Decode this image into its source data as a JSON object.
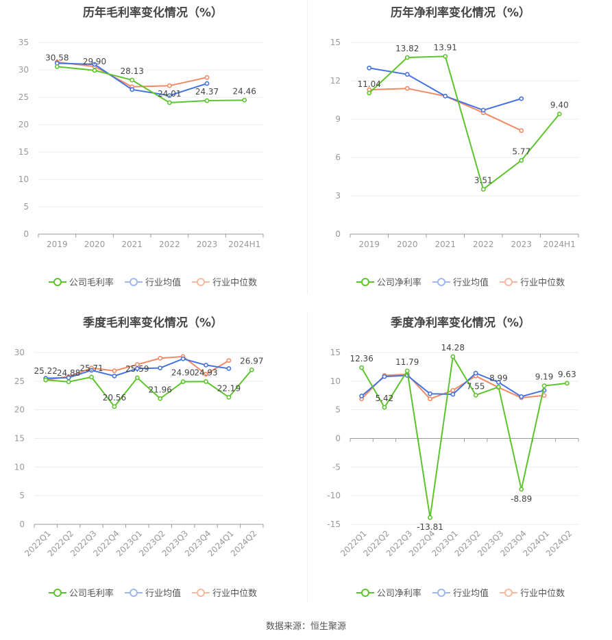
{
  "source_note": "数据来源：恒生聚源",
  "colors": {
    "company": "#5cc42b",
    "industry_avg": "#4472e0",
    "industry_median": "#f08a62"
  },
  "chart_data": [
    {
      "id": "annual-gross",
      "type": "line",
      "title": "历年毛利率变化情况（%）",
      "categories": [
        "2019",
        "2020",
        "2021",
        "2022",
        "2023",
        "2024H1"
      ],
      "ylim": [
        0,
        35
      ],
      "yticks": [
        0,
        5,
        10,
        15,
        20,
        25,
        30,
        35
      ],
      "series": [
        {
          "name": "公司毛利率",
          "key": "company",
          "values": [
            30.58,
            29.9,
            28.13,
            24.01,
            24.37,
            24.46
          ],
          "labels": true
        },
        {
          "name": "行业均值",
          "key": "industry_avg",
          "values": [
            31.2,
            31.0,
            26.4,
            25.3,
            27.5,
            null
          ]
        },
        {
          "name": "行业中位数",
          "key": "industry_median",
          "values": [
            31.4,
            30.6,
            26.9,
            27.1,
            28.6,
            null
          ]
        }
      ]
    },
    {
      "id": "annual-net",
      "type": "line",
      "title": "历年净利率变化情况（%）",
      "categories": [
        "2019",
        "2020",
        "2021",
        "2022",
        "2023",
        "2024H1"
      ],
      "ylim": [
        0,
        15
      ],
      "yticks": [
        0,
        3,
        6,
        9,
        12,
        15
      ],
      "series": [
        {
          "name": "公司净利率",
          "key": "company",
          "values": [
            11.04,
            13.82,
            13.91,
            3.51,
            5.77,
            9.4
          ],
          "labels": true
        },
        {
          "name": "行业均值",
          "key": "industry_avg",
          "values": [
            13.0,
            12.5,
            10.8,
            9.7,
            10.6,
            null
          ]
        },
        {
          "name": "行业中位数",
          "key": "industry_median",
          "values": [
            11.3,
            11.4,
            10.8,
            9.5,
            8.1,
            null
          ]
        }
      ]
    },
    {
      "id": "quarter-gross",
      "type": "line",
      "title": "季度毛利率变化情况（%）",
      "categories": [
        "2022Q1",
        "2022Q2",
        "2022Q3",
        "2022Q4",
        "2023Q1",
        "2023Q2",
        "2023Q3",
        "2023Q4",
        "2024Q1",
        "2024Q2"
      ],
      "ylim": [
        0,
        30
      ],
      "yticks": [
        0,
        5,
        10,
        15,
        20,
        25,
        30
      ],
      "series": [
        {
          "name": "公司毛利率",
          "key": "company",
          "values": [
            25.22,
            24.88,
            25.71,
            20.56,
            25.59,
            21.96,
            24.9,
            24.93,
            22.19,
            26.97
          ],
          "labels": true
        },
        {
          "name": "行业均值",
          "key": "industry_avg",
          "values": [
            25.5,
            25.6,
            26.9,
            25.9,
            27.2,
            27.3,
            28.9,
            27.8,
            27.2,
            null
          ]
        },
        {
          "name": "行业中位数",
          "key": "industry_median",
          "values": [
            25.2,
            25.8,
            27.3,
            26.8,
            27.9,
            29.0,
            29.3,
            26.2,
            28.6,
            null
          ]
        }
      ]
    },
    {
      "id": "quarter-net",
      "type": "line",
      "title": "季度净利率变化情况（%）",
      "categories": [
        "2022Q1",
        "2022Q2",
        "2022Q3",
        "2022Q4",
        "2023Q1",
        "2023Q2",
        "2023Q3",
        "2023Q4",
        "2024Q1",
        "2024Q2"
      ],
      "ylim": [
        -15,
        15
      ],
      "yticks": [
        -15,
        -10,
        -5,
        0,
        5,
        10,
        15
      ],
      "series": [
        {
          "name": "公司净利率",
          "key": "company",
          "values": [
            12.36,
            5.42,
            11.79,
            -13.81,
            14.28,
            7.55,
            8.99,
            -8.89,
            9.19,
            9.63
          ],
          "labels": true
        },
        {
          "name": "行业均值",
          "key": "industry_avg",
          "values": [
            7.4,
            10.8,
            11.0,
            7.8,
            7.7,
            11.4,
            9.8,
            7.3,
            8.4,
            null
          ]
        },
        {
          "name": "行业中位数",
          "key": "industry_median",
          "values": [
            6.9,
            11.0,
            11.2,
            6.9,
            8.4,
            10.9,
            8.9,
            7.1,
            7.5,
            null
          ]
        }
      ]
    }
  ]
}
